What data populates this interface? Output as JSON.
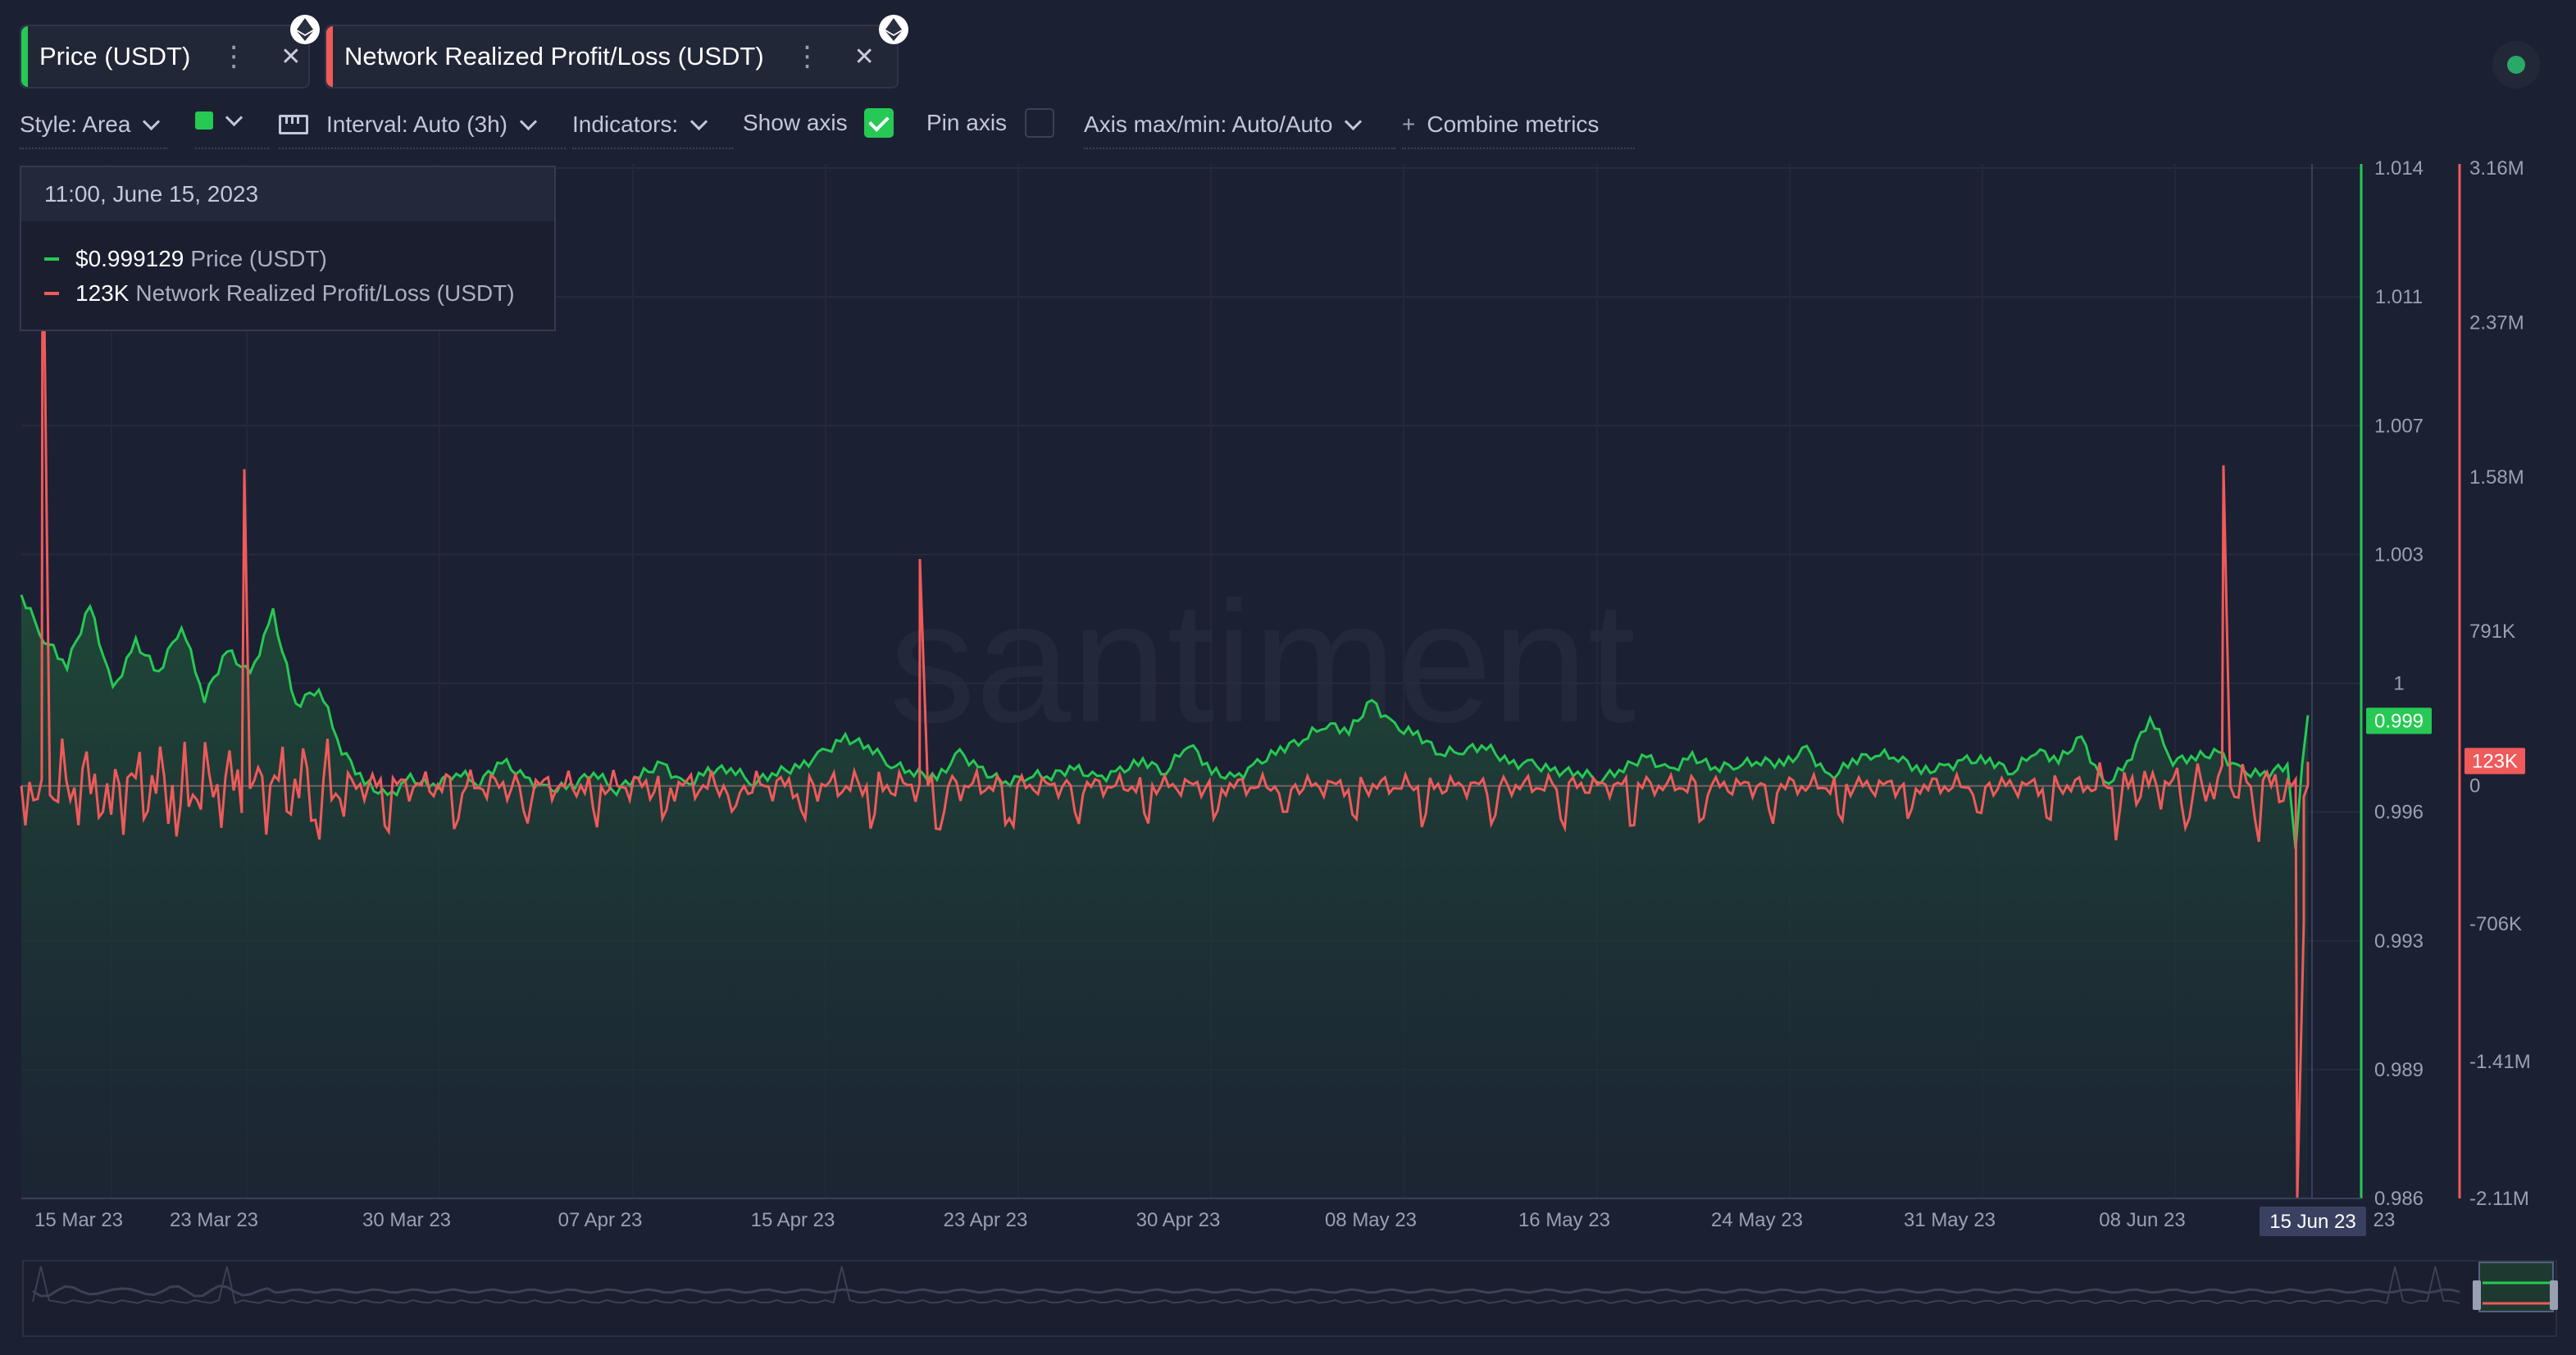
{
  "metrics": [
    {
      "label": "Price (USDT)",
      "color": "#26c953",
      "menu_icon": "dots-vertical-icon",
      "close_icon": "close-icon",
      "badge_icon": "ethereum-icon"
    },
    {
      "label": "Network Realized Profit/Loss (USDT)",
      "color": "#ef5a5a",
      "menu_icon": "dots-vertical-icon",
      "close_icon": "close-icon",
      "badge_icon": "ethereum-icon"
    }
  ],
  "toolbar": {
    "style_label": "Style: Area",
    "color_swatch": "#26c953",
    "interval_label": "Interval: Auto (3h)",
    "indicators_label": "Indicators:",
    "show_axis_label": "Show axis",
    "show_axis_checked": true,
    "pin_axis_label": "Pin axis",
    "pin_axis_checked": false,
    "axis_minmax_label": "Axis max/min: Auto/Auto",
    "combine_label": "Combine metrics",
    "combine_icon": "+"
  },
  "tooltip": {
    "date": "11:00, June 15, 2023",
    "rows": [
      {
        "value": "$0.999129",
        "name": "Price (USDT)",
        "color": "#26c953"
      },
      {
        "value": "123K",
        "name": "Network Realized Profit/Loss (USDT)",
        "color": "#ef5a5a"
      }
    ]
  },
  "watermark": "santiment",
  "chart_data": {
    "type": "line",
    "x_labels": [
      "15 Mar 23",
      "23 Mar 23",
      "30 Mar 23",
      "07 Apr 23",
      "15 Apr 23",
      "23 Apr 23",
      "30 Apr 23",
      "08 May 23",
      "16 May 23",
      "24 May 23",
      "31 May 23",
      "08 Jun 23",
      "15 Jun 23",
      "23"
    ],
    "left_axis": {
      "ticks": [
        "1.014",
        "1.011",
        "1.007",
        "1.003",
        "1",
        "0.996",
        "0.993",
        "0.989",
        "0.986"
      ],
      "current": "0.999",
      "color": "#26c953",
      "range": [
        0.986,
        1.014
      ]
    },
    "right_axis": {
      "ticks": [
        "3.16M",
        "2.37M",
        "1.58M",
        "791K",
        "0",
        "-706K",
        "-1.41M",
        "-2.11M"
      ],
      "current": "123K",
      "color": "#ef5a5a",
      "range": [
        -2110000,
        3160000
      ]
    },
    "series": [
      {
        "name": "Price (USDT)",
        "style": "area",
        "color": "#26c953",
        "values": [
          1.0024,
          1.0012,
          1.0005,
          1.0021,
          0.9998,
          1.0011,
          1.0003,
          1.0016,
          0.9996,
          1.0009,
          1.0002,
          1.0019,
          0.9994,
          0.9999,
          0.9982,
          0.9973,
          0.9969,
          0.9974,
          0.9972,
          0.9976,
          0.9973,
          0.9979,
          0.9974,
          0.9971,
          0.9972,
          0.9976,
          0.9971,
          0.9975,
          0.9978,
          0.9972,
          0.9976,
          0.9977,
          0.9973,
          0.9976,
          0.9977,
          0.9981,
          0.9985,
          0.9983,
          0.9978,
          0.9976,
          0.9974,
          0.9981,
          0.9976,
          0.9973,
          0.9975,
          0.9975,
          0.9977,
          0.9974,
          0.9976,
          0.9979,
          0.9976,
          0.9984,
          0.9976,
          0.9974,
          0.9978,
          0.9982,
          0.9985,
          0.9989,
          0.9987,
          0.9995,
          0.9988,
          0.9986,
          0.9981,
          0.9982,
          0.9983,
          0.9978,
          0.9978,
          0.9976,
          0.9976,
          0.9974,
          0.9977,
          0.998,
          0.9976,
          0.998,
          0.9977,
          0.9978,
          0.9979,
          0.9978,
          0.9982,
          0.9974,
          0.9979,
          0.9981,
          0.998,
          0.9976,
          0.9977,
          0.9979,
          0.9979,
          0.9976,
          0.9982,
          0.9979,
          0.9985,
          0.9972,
          0.9978,
          0.9991,
          0.9979,
          0.998,
          0.9981,
          0.9976,
          0.9975,
          0.9978
        ],
        "note_x_span": "15 Mar 23 to 15 Jun 23"
      },
      {
        "name": "Network Realized Profit/Loss (USDT)",
        "style": "line",
        "color": "#ef5a5a",
        "spikes": [
          {
            "date": "15 Mar 23",
            "value": 3160000
          },
          {
            "date": "22 Mar 23",
            "value": 1620000
          },
          {
            "date": "20 Apr 23",
            "value": 1160000
          },
          {
            "date": "12 Jun 23",
            "value": 1640000
          },
          {
            "date": "15 Jun 23",
            "value": -2110000
          }
        ],
        "baseline": 0
      }
    ],
    "grid": true,
    "hover_date": "15 Jun 23"
  }
}
